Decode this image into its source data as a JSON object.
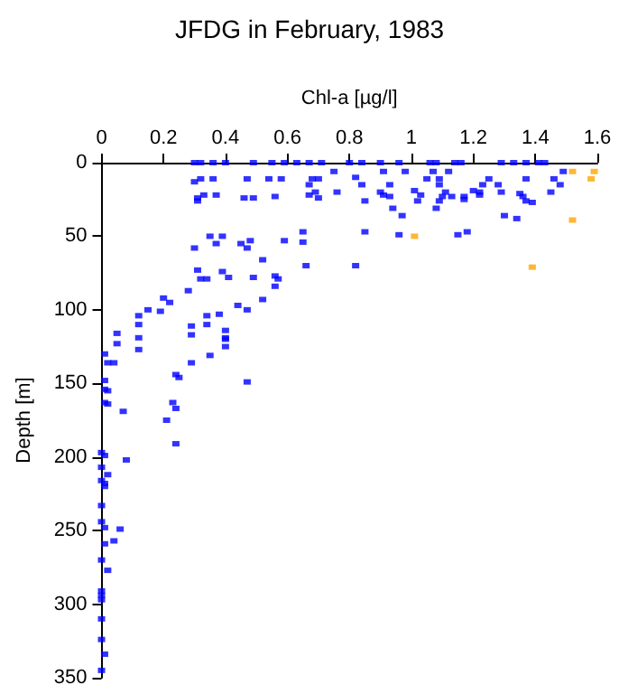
{
  "chart_data": {
    "type": "scatter",
    "title": "JFDG in February, 1983",
    "xlabel": "Chl-a [µg/l]",
    "ylabel": "Depth [m]",
    "xlim": [
      0,
      1.6
    ],
    "xticks": [
      0,
      0.2,
      0.4,
      0.6,
      0.8,
      1,
      1.2,
      1.4,
      1.6
    ],
    "ylim": [
      350,
      0
    ],
    "yticks": [
      0,
      50,
      100,
      150,
      200,
      250,
      300,
      350
    ],
    "grid": false,
    "marker": "square",
    "series": [
      {
        "color": "#0000ff",
        "x": [
          0.3,
          0.32,
          0.36,
          0.4,
          0.49,
          0.55,
          0.59,
          0.63,
          0.67,
          0.71,
          0.8,
          0.84,
          0.9,
          0.96,
          1.06,
          1.08,
          1.14,
          1.16,
          1.29,
          1.33,
          1.37,
          1.41,
          1.43,
          0.3,
          0.32,
          0.36,
          0.47,
          0.54,
          0.58,
          0.68,
          0.7,
          0.75,
          0.67,
          0.69,
          0.67,
          0.7,
          0.76,
          0.31,
          0.31,
          0.33,
          0.37,
          0.46,
          0.49,
          0.56,
          0.35,
          0.39,
          0.37,
          0.3,
          0.45,
          0.48,
          0.47,
          0.59,
          0.65,
          0.65,
          0.66,
          0.52,
          0.31,
          0.32,
          0.34,
          0.39,
          0.41,
          0.49,
          0.56,
          0.57,
          0.56,
          0.52,
          0.28,
          0.2,
          0.22,
          0.19,
          0.15,
          0.12,
          0.44,
          0.47,
          0.38,
          0.34,
          0.29,
          0.05,
          0.12,
          0.4,
          0.4,
          0.82,
          0.84,
          0.91,
          0.98,
          0.93,
          0.9,
          0.91,
          0.93,
          0.85,
          0.94,
          0.97,
          1.01,
          1.03,
          1.02,
          1.05,
          1.09,
          1.07,
          1.12,
          1.09,
          1.11,
          1.1,
          1.09,
          1.13,
          1.17,
          1.17,
          1.08,
          0.96,
          0.85,
          0.82,
          1.15,
          1.18,
          1.23,
          1.25,
          1.2,
          1.22,
          1.22,
          1.28,
          1.29,
          1.35,
          1.36,
          1.37,
          1.37,
          1.39,
          1.3,
          1.34,
          1.45,
          1.46,
          1.48,
          1.49,
          0.12,
          0.29,
          0.34,
          0.4,
          0.4,
          0.05,
          0.01,
          0.12,
          0.02,
          0.04,
          0.29,
          0.35,
          0.01,
          0.47,
          0.24,
          0.25,
          0.01,
          0.02,
          0.01,
          0.02,
          0.23,
          0.24,
          0.07,
          0.21,
          0.24,
          0.0,
          0.01,
          0.08,
          0.0,
          0.02,
          0.0,
          0.01,
          0.01,
          0.0,
          0.0,
          0.01,
          0.06,
          0.01,
          0.04,
          0.0,
          0.02,
          0.0,
          0.0,
          0.0,
          0.0,
          0.0,
          0.01,
          0.0
        ],
        "values": [
          0,
          0,
          0,
          0,
          0,
          0,
          0,
          0,
          0,
          0,
          0,
          0,
          0,
          0,
          0,
          0,
          0,
          0,
          0,
          0,
          0,
          0,
          0,
          13,
          11,
          11,
          11,
          11,
          11,
          11,
          11,
          6,
          15,
          20,
          22,
          24,
          20,
          24,
          26,
          22,
          22,
          24,
          24,
          23,
          50,
          50,
          55,
          58,
          55,
          53,
          58,
          53,
          47,
          54,
          70,
          66,
          73,
          79,
          79,
          74,
          78,
          78,
          77,
          79,
          84,
          93,
          87,
          92,
          95,
          101,
          100,
          104,
          97,
          100,
          103,
          104,
          111,
          116,
          119,
          114,
          119,
          10,
          15,
          6,
          6,
          15,
          20,
          22,
          23,
          26,
          31,
          36,
          19,
          22,
          26,
          11,
          11,
          6,
          6,
          15,
          20,
          23,
          26,
          23,
          23,
          25,
          31,
          49,
          47,
          70,
          49,
          47,
          15,
          11,
          19,
          20,
          22,
          15,
          20,
          21,
          23,
          11,
          26,
          27,
          36,
          38,
          20,
          11,
          15,
          6,
          110,
          117,
          110,
          120,
          125,
          123,
          130,
          127,
          136,
          136,
          136,
          131,
          148,
          149,
          144,
          146,
          154,
          155,
          163,
          164,
          163,
          167,
          169,
          175,
          191,
          197,
          199,
          202,
          207,
          212,
          216,
          218,
          220,
          233,
          244,
          248,
          249,
          259,
          257,
          270,
          277,
          291,
          294,
          297,
          310,
          324,
          334,
          345
        ]
      },
      {
        "color": "#ffa500",
        "x": [
          1.01,
          1.39,
          1.52,
          1.52,
          1.58,
          1.59
        ],
        "values": [
          50,
          71,
          39,
          6,
          11,
          6
        ]
      }
    ]
  }
}
